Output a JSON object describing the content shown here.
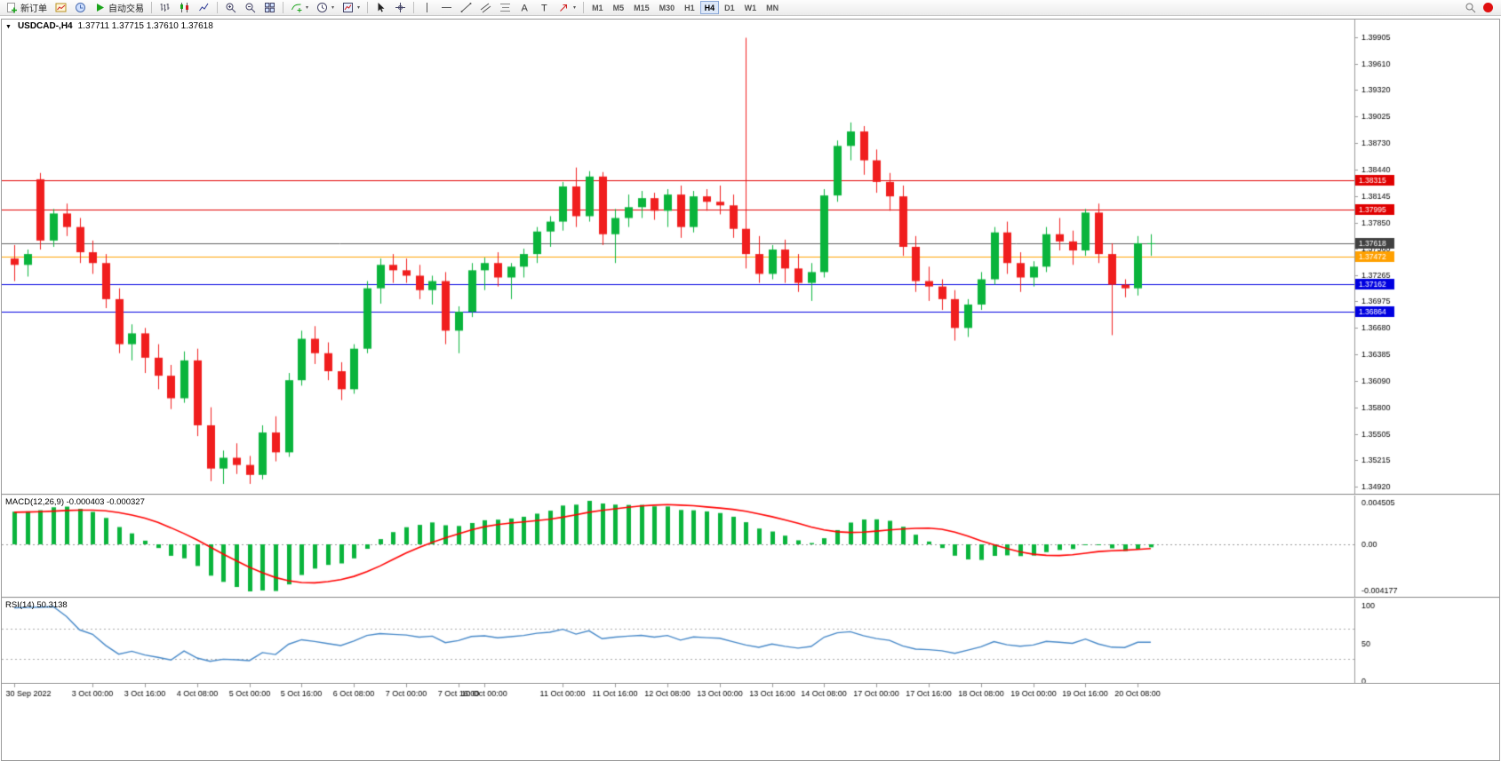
{
  "colors": {
    "up": "#0ab43c",
    "down": "#f01e1e",
    "macd_hist": "#0ab43c",
    "macd_signal": "#ff0000",
    "rsi_line": "#4688c8",
    "axis_text": "#000000",
    "grid": "#9a9a9a"
  },
  "toolbar": {
    "new_order_label": "新订单",
    "autotrading_label": "自动交易",
    "timeframes": [
      "M1",
      "M5",
      "M15",
      "M30",
      "H1",
      "H4",
      "D1",
      "W1",
      "MN"
    ],
    "active_timeframe": "H4"
  },
  "chart": {
    "header": {
      "symbol_period": "USDCAD-,H4",
      "ohlc": "1.37711 1.37715 1.37610 1.37618"
    },
    "price_axis": [
      "1.39905",
      "1.39610",
      "1.39320",
      "1.39025",
      "1.38730",
      "1.38440",
      "1.38145",
      "1.37850",
      "1.37560",
      "1.37265",
      "1.36975",
      "1.36680",
      "1.36385",
      "1.36090",
      "1.35800",
      "1.35505",
      "1.35215",
      "1.34920"
    ],
    "hlines": [
      {
        "price": 1.38315,
        "label": "1.38315",
        "color": "#e00000"
      },
      {
        "price": 1.37995,
        "label": "1.37995",
        "color": "#e00000"
      },
      {
        "price": 1.37472,
        "label": "1.37472",
        "color": "#ffa000"
      },
      {
        "price": 1.37162,
        "label": "1.37162",
        "color": "#0000e0"
      },
      {
        "price": 1.36864,
        "label": "1.36864",
        "color": "#0000e0"
      }
    ],
    "price_line": {
      "price": 1.37618,
      "label": "1.37618",
      "color": "#606060",
      "tag_bg": "#404040"
    },
    "time_labels": [
      {
        "text": "30 Sep 2022",
        "i": 0
      },
      {
        "text": "3 Oct 00:00",
        "i": 6
      },
      {
        "text": "3 Oct 16:00",
        "i": 10
      },
      {
        "text": "4 Oct 08:00",
        "i": 14
      },
      {
        "text": "5 Oct 00:00",
        "i": 18
      },
      {
        "text": "5 Oct 16:00",
        "i": 22
      },
      {
        "text": "6 Oct 08:00",
        "i": 26
      },
      {
        "text": "7 Oct 00:00",
        "i": 30
      },
      {
        "text": "7 Oct 16:00",
        "i": 34
      },
      {
        "text": "10 Oct 00:00",
        "i": 36
      },
      {
        "text": "11 Oct 00:00",
        "i": 42
      },
      {
        "text": "11 Oct 16:00",
        "i": 46
      },
      {
        "text": "12 Oct 08:00",
        "i": 50
      },
      {
        "text": "13 Oct 00:00",
        "i": 54
      },
      {
        "text": "13 Oct 16:00",
        "i": 58
      },
      {
        "text": "14 Oct 08:00",
        "i": 62
      },
      {
        "text": "17 Oct 00:00",
        "i": 66
      },
      {
        "text": "17 Oct 16:00",
        "i": 70
      },
      {
        "text": "18 Oct 08:00",
        "i": 74
      },
      {
        "text": "19 Oct 00:00",
        "i": 78
      },
      {
        "text": "19 Oct 16:00",
        "i": 82
      },
      {
        "text": "20 Oct 08:00",
        "i": 86
      }
    ]
  },
  "macd": {
    "title": "MACD(12,26,9) -0.000403 -0.000327",
    "main_value": -0.000403,
    "signal_value": -0.000327,
    "axis_top": "0.004505",
    "axis_zero": "0.00",
    "axis_bottom": "-0.004177"
  },
  "rsi": {
    "title": "RSI(14) 50.3138",
    "value": 50.3138,
    "axis": [
      "100",
      "50",
      "0"
    ],
    "levels": [
      70,
      30
    ]
  },
  "chart_data": {
    "type": "candlestick",
    "symbol": "USDCAD",
    "period": "H4",
    "y_range": [
      1.3492,
      1.39905
    ],
    "open": 1.37711,
    "high": 1.37715,
    "low": 1.3761,
    "close": 1.37618,
    "candles": [
      [
        1.3745,
        1.376,
        1.372,
        1.3738
      ],
      [
        1.3738,
        1.3755,
        1.3725,
        1.375
      ],
      [
        1.3833,
        1.384,
        1.3755,
        1.3765
      ],
      [
        1.3765,
        1.38,
        1.3758,
        1.3795
      ],
      [
        1.3795,
        1.3806,
        1.377,
        1.378
      ],
      [
        1.378,
        1.379,
        1.374,
        1.3752
      ],
      [
        1.3752,
        1.3765,
        1.3728,
        1.374
      ],
      [
        1.374,
        1.375,
        1.369,
        1.37
      ],
      [
        1.37,
        1.3712,
        1.364,
        1.365
      ],
      [
        1.365,
        1.3672,
        1.3632,
        1.3662
      ],
      [
        1.3662,
        1.3668,
        1.3618,
        1.3635
      ],
      [
        1.3635,
        1.365,
        1.36,
        1.3615
      ],
      [
        1.3615,
        1.3627,
        1.3578,
        1.359
      ],
      [
        1.359,
        1.3642,
        1.3585,
        1.3632
      ],
      [
        1.3632,
        1.3645,
        1.3548,
        1.356
      ],
      [
        1.356,
        1.358,
        1.3498,
        1.3512
      ],
      [
        1.3512,
        1.3532,
        1.3495,
        1.3524
      ],
      [
        1.3524,
        1.354,
        1.3506,
        1.3516
      ],
      [
        1.3516,
        1.3526,
        1.3495,
        1.3505
      ],
      [
        1.3505,
        1.356,
        1.35,
        1.3552
      ],
      [
        1.3552,
        1.357,
        1.352,
        1.353
      ],
      [
        1.353,
        1.3618,
        1.3525,
        1.361
      ],
      [
        1.361,
        1.3665,
        1.3604,
        1.3656
      ],
      [
        1.3656,
        1.367,
        1.3628,
        1.364
      ],
      [
        1.364,
        1.3652,
        1.361,
        1.362
      ],
      [
        1.362,
        1.363,
        1.3588,
        1.36
      ],
      [
        1.36,
        1.365,
        1.3595,
        1.3645
      ],
      [
        1.3645,
        1.372,
        1.364,
        1.3712
      ],
      [
        1.3712,
        1.3745,
        1.3695,
        1.3738
      ],
      [
        1.3738,
        1.375,
        1.3718,
        1.3732
      ],
      [
        1.3732,
        1.3745,
        1.3718,
        1.3726
      ],
      [
        1.3726,
        1.3738,
        1.37,
        1.371
      ],
      [
        1.371,
        1.3726,
        1.3694,
        1.372
      ],
      [
        1.372,
        1.373,
        1.365,
        1.3665
      ],
      [
        1.3665,
        1.3692,
        1.364,
        1.3686
      ],
      [
        1.3686,
        1.374,
        1.368,
        1.3732
      ],
      [
        1.3732,
        1.3746,
        1.371,
        1.374
      ],
      [
        1.374,
        1.3752,
        1.3714,
        1.3724
      ],
      [
        1.3724,
        1.374,
        1.37,
        1.3736
      ],
      [
        1.3736,
        1.3756,
        1.3724,
        1.375
      ],
      [
        1.375,
        1.378,
        1.374,
        1.3775
      ],
      [
        1.3775,
        1.3792,
        1.3758,
        1.3786
      ],
      [
        1.3786,
        1.383,
        1.3776,
        1.3825
      ],
      [
        1.3825,
        1.3846,
        1.378,
        1.3792
      ],
      [
        1.3792,
        1.3842,
        1.3786,
        1.3836
      ],
      [
        1.3836,
        1.3841,
        1.376,
        1.3772
      ],
      [
        1.3772,
        1.38,
        1.374,
        1.379
      ],
      [
        1.379,
        1.3816,
        1.378,
        1.3802
      ],
      [
        1.3802,
        1.382,
        1.379,
        1.3812
      ],
      [
        1.3812,
        1.3818,
        1.3788,
        1.3798
      ],
      [
        1.3798,
        1.3822,
        1.378,
        1.3816
      ],
      [
        1.3816,
        1.3826,
        1.3768,
        1.378
      ],
      [
        1.378,
        1.382,
        1.3774,
        1.3814
      ],
      [
        1.3814,
        1.3822,
        1.3798,
        1.3808
      ],
      [
        1.3808,
        1.3826,
        1.3794,
        1.3804
      ],
      [
        1.3804,
        1.3816,
        1.3768,
        1.3778
      ],
      [
        1.3778,
        1.399,
        1.3734,
        1.375
      ],
      [
        1.375,
        1.377,
        1.3718,
        1.3728
      ],
      [
        1.3728,
        1.376,
        1.3722,
        1.3755
      ],
      [
        1.3755,
        1.3766,
        1.3718,
        1.3734
      ],
      [
        1.3734,
        1.375,
        1.3708,
        1.3718
      ],
      [
        1.3718,
        1.374,
        1.3698,
        1.373
      ],
      [
        1.373,
        1.3822,
        1.3724,
        1.3815
      ],
      [
        1.3815,
        1.3876,
        1.3808,
        1.387
      ],
      [
        1.387,
        1.3896,
        1.3854,
        1.3886
      ],
      [
        1.3886,
        1.3892,
        1.3838,
        1.3854
      ],
      [
        1.3854,
        1.3866,
        1.3818,
        1.383
      ],
      [
        1.383,
        1.384,
        1.3798,
        1.3814
      ],
      [
        1.3814,
        1.3826,
        1.3748,
        1.3758
      ],
      [
        1.3758,
        1.377,
        1.3708,
        1.372
      ],
      [
        1.372,
        1.3736,
        1.3698,
        1.3714
      ],
      [
        1.3714,
        1.3722,
        1.3688,
        1.37
      ],
      [
        1.37,
        1.371,
        1.3654,
        1.3668
      ],
      [
        1.3668,
        1.37,
        1.3658,
        1.3694
      ],
      [
        1.3694,
        1.373,
        1.3688,
        1.3722
      ],
      [
        1.3722,
        1.378,
        1.3716,
        1.3774
      ],
      [
        1.3774,
        1.3786,
        1.3728,
        1.374
      ],
      [
        1.374,
        1.3752,
        1.3708,
        1.3724
      ],
      [
        1.3724,
        1.3742,
        1.3714,
        1.3736
      ],
      [
        1.3736,
        1.378,
        1.373,
        1.3772
      ],
      [
        1.3772,
        1.379,
        1.3754,
        1.3764
      ],
      [
        1.3764,
        1.3776,
        1.3738,
        1.3754
      ],
      [
        1.3754,
        1.38,
        1.3748,
        1.3796
      ],
      [
        1.3796,
        1.3806,
        1.374,
        1.375
      ],
      [
        1.375,
        1.3762,
        1.366,
        1.3716
      ],
      [
        1.3716,
        1.3722,
        1.3702,
        1.3712
      ],
      [
        1.3712,
        1.377,
        1.3704,
        1.3762
      ],
      [
        1.3762,
        1.3772,
        1.3748,
        1.3762
      ]
    ]
  }
}
